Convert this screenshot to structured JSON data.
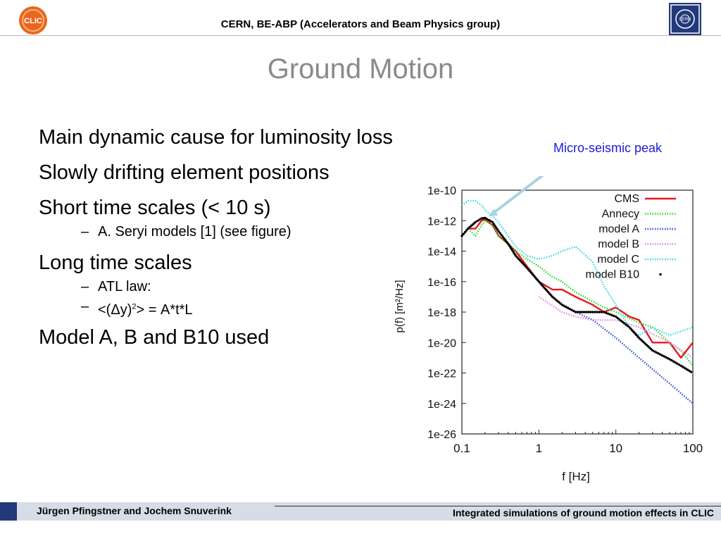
{
  "header": {
    "title": "CERN, BE-ABP (Accelerators and Beam Physics group)",
    "clic_logo_text": "CLIC",
    "cern_logo_text": "CERN"
  },
  "slide": {
    "title": "Ground Motion",
    "bullets": [
      "Main dynamic cause for luminosity loss",
      "Slowly drifting element positions",
      "Short time scales (< 10 s)",
      "A. Seryi models [1] (see figure)",
      "Long time scales",
      "ATL law:",
      "<(Δy)",
      "2",
      "> = A*t*L",
      "Model A, B and B10 used"
    ],
    "sub_dash": "–",
    "annotation": "Micro-seismic peak"
  },
  "footer": {
    "authors": "Jürgen Pfingstner and Jochem Snuverink",
    "talk_title": "Integrated simulations of ground motion effects in CLIC"
  },
  "chart_data": {
    "type": "line",
    "x_scale": "log",
    "y_scale": "log",
    "xlabel": "f [Hz]",
    "ylabel": "p(f)  [m²/Hz]",
    "xlim": [
      0.1,
      100
    ],
    "ylim": [
      1e-26,
      1e-10
    ],
    "x_ticks": [
      "0.1",
      "1",
      "10",
      "100"
    ],
    "y_ticks": [
      "1e-10",
      "1e-12",
      "1e-14",
      "1e-16",
      "1e-18",
      "1e-20",
      "1e-22",
      "1e-24",
      "1e-26"
    ],
    "grid": true,
    "legend_position": "top-right",
    "series": [
      {
        "name": "CMS",
        "color": "#e8171f",
        "style": "solid",
        "x": [
          0.1,
          0.12,
          0.15,
          0.18,
          0.2,
          0.25,
          0.3,
          0.4,
          0.5,
          0.7,
          1,
          1.5,
          2,
          3,
          5,
          7,
          10,
          15,
          20,
          30,
          50,
          70,
          100
        ],
        "y": [
          1e-13,
          3e-13,
          3e-13,
          1e-12,
          1.2e-12,
          5e-13,
          1e-13,
          3e-14,
          1e-14,
          1e-15,
          1e-16,
          3e-17,
          3e-17,
          1e-17,
          3e-18,
          1e-18,
          2e-18,
          5e-19,
          3e-19,
          1e-20,
          1e-20,
          1e-21,
          1e-20
        ]
      },
      {
        "name": "Annecy",
        "color": "#22dd22",
        "style": "dotted",
        "x": [
          0.1,
          0.12,
          0.15,
          0.18,
          0.2,
          0.25,
          0.3,
          0.5,
          0.7,
          1,
          1.5,
          2,
          3,
          5,
          7,
          10,
          20,
          30,
          50,
          70,
          100
        ],
        "y": [
          1e-13,
          3e-13,
          1e-13,
          5e-13,
          1e-12,
          5e-13,
          1e-13,
          1e-14,
          3e-15,
          1e-15,
          2e-16,
          1e-16,
          2e-17,
          5e-18,
          2e-18,
          1e-18,
          2e-19,
          1e-19,
          1e-20,
          3e-21,
          3e-22
        ]
      },
      {
        "name": "model A",
        "color": "#2a4fd6",
        "style": "dotted",
        "x": [
          2,
          3,
          5,
          10,
          20,
          50,
          100
        ],
        "y": [
          3e-18,
          1e-18,
          3e-19,
          2e-20,
          1e-21,
          2e-23,
          1e-24
        ]
      },
      {
        "name": "model B",
        "color": "#e87fe8",
        "style": "dotted",
        "x": [
          1,
          2,
          3,
          5,
          10,
          20,
          50,
          100
        ],
        "y": [
          1e-17,
          1e-18,
          5e-19,
          3e-19,
          3e-19,
          1e-19,
          1e-20,
          1e-21
        ]
      },
      {
        "name": "model C",
        "color": "#36d6e0",
        "style": "dotted",
        "x": [
          0.1,
          0.12,
          0.15,
          0.18,
          0.2,
          0.25,
          0.3,
          0.4,
          0.5,
          0.7,
          1,
          1.5,
          2,
          3,
          5,
          7,
          10,
          15,
          20,
          30,
          50,
          100
        ],
        "y": [
          1e-11,
          2e-11,
          2e-11,
          1e-11,
          5e-12,
          2e-12,
          8e-13,
          1e-13,
          2e-14,
          5e-15,
          3e-15,
          5e-15,
          1e-14,
          2e-14,
          2e-15,
          5e-17,
          3e-18,
          1e-19,
          3e-20,
          1e-19,
          3e-20,
          1e-19
        ]
      },
      {
        "name": "model B10",
        "color": "#000000",
        "style": "points",
        "x": [
          0.1,
          0.12,
          0.15,
          0.18,
          0.2,
          0.25,
          0.3,
          0.4,
          0.5,
          0.7,
          1,
          1.5,
          2,
          3,
          5,
          7,
          10,
          15,
          20,
          30,
          50,
          70,
          100
        ],
        "y": [
          1e-13,
          3e-13,
          8e-13,
          1.4e-12,
          1.5e-12,
          8e-13,
          2e-13,
          3e-14,
          5e-15,
          8e-16,
          1e-16,
          1e-17,
          3e-18,
          1e-18,
          1e-18,
          1e-18,
          5e-19,
          1e-19,
          2e-20,
          3e-21,
          8e-22,
          3e-22,
          1e-22
        ]
      }
    ]
  }
}
